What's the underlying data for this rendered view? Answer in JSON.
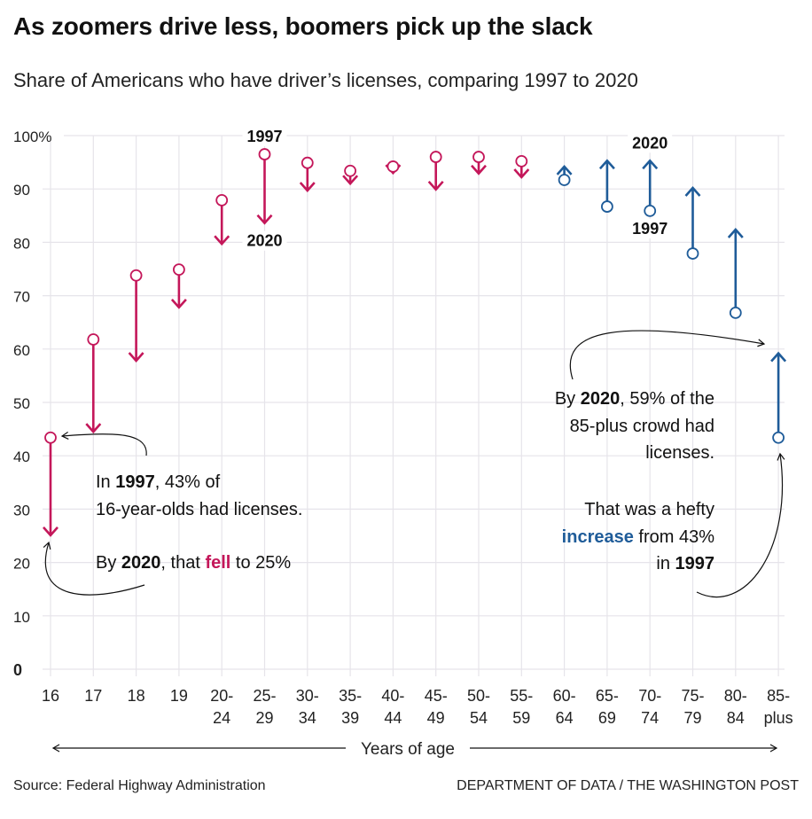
{
  "title": "As zoomers drive less, boomers pick up the slack",
  "subtitle": "Share of Americans who have driver’s licenses, comparing 1997 to 2020",
  "colors": {
    "decrease": "#c4175a",
    "increase": "#1f5c99",
    "grid": "#e6e4ea"
  },
  "chart_data": {
    "type": "dot-arrow",
    "title": "As zoomers drive less, boomers pick up the slack",
    "subtitle": "Share of Americans who have driver’s licenses, comparing 1997 to 2020",
    "xlabel": "Years of age",
    "ylabel": "",
    "ylim": [
      0,
      100
    ],
    "grid": true,
    "y_ticks": [
      "0",
      "10",
      "20",
      "30",
      "40",
      "50",
      "60",
      "70",
      "80",
      "90",
      "100%"
    ],
    "categories": [
      "16",
      "17",
      "18",
      "19",
      "20-\n24",
      "25-\n29",
      "30-\n34",
      "35-\n39",
      "40-\n44",
      "45-\n49",
      "50-\n54",
      "55-\n59",
      "60-\n64",
      "65-\n69",
      "70-\n74",
      "75-\n79",
      "80-\n84",
      "85-\nplus"
    ],
    "series": [
      {
        "name": "1997",
        "values": [
          43.4,
          61.8,
          73.8,
          74.9,
          87.9,
          96.5,
          94.9,
          93.4,
          94.2,
          96.0,
          96.0,
          95.2,
          91.7,
          86.7,
          85.9,
          77.9,
          66.8,
          43.4
        ]
      },
      {
        "name": "2020",
        "values": [
          25.1,
          44.5,
          57.8,
          67.8,
          79.7,
          83.6,
          89.7,
          91.0,
          93.0,
          89.9,
          92.9,
          92.2,
          94.2,
          95.3,
          95.3,
          90.2,
          82.4,
          59.2
        ]
      }
    ],
    "labels": [
      {
        "text": "1997",
        "category": "25-29",
        "series": "1997"
      },
      {
        "text": "2020",
        "category": "25-29",
        "series": "2020"
      },
      {
        "text": "2020",
        "category": "70-74",
        "series": "2020"
      },
      {
        "text": "1997",
        "category": "70-74",
        "series": "1997"
      }
    ]
  },
  "annotations": {
    "left": {
      "l1": [
        "In ",
        "1997",
        ", 43% of"
      ],
      "l2": "16-year-olds had licenses.",
      "l3": [
        "By ",
        "2020",
        ", that ",
        "fell",
        " to 25%"
      ]
    },
    "right": {
      "l1": [
        "By ",
        "2020",
        ", 59% of the"
      ],
      "l2": "85-plus crowd had",
      "l3": "licenses.",
      "l4": "That was a hefty",
      "l5": [
        "increase",
        " from 43%"
      ],
      "l6": [
        "in ",
        "1997"
      ]
    }
  },
  "footer": {
    "source": "Source: Federal Highway Administration",
    "credit": "DEPARTMENT OF DATA / THE WASHINGTON POST"
  }
}
